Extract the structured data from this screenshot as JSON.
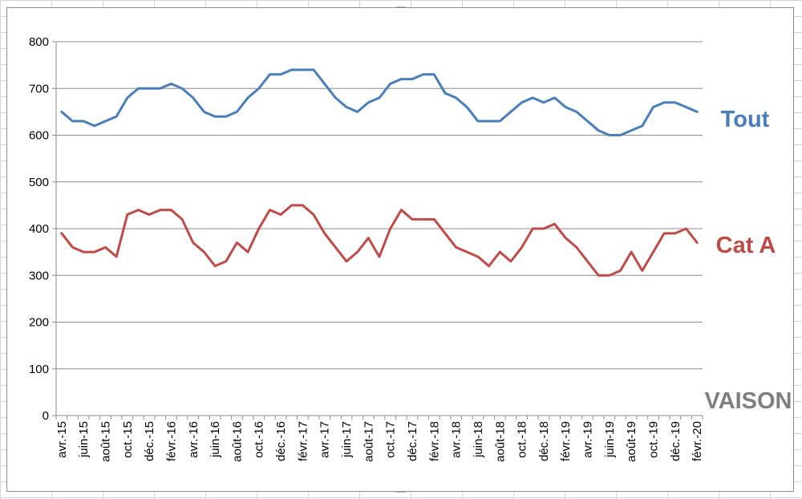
{
  "chart_data": {
    "type": "line",
    "x": [
      "avr.-15",
      "mai-15",
      "juin-15",
      "juil.-15",
      "août-15",
      "sept.-15",
      "oct.-15",
      "nov.-15",
      "déc.-15",
      "janv.-16",
      "févr.-16",
      "mars-16",
      "avr.-16",
      "mai-16",
      "juin-16",
      "juil.-16",
      "août-16",
      "sept.-16",
      "oct.-16",
      "nov.-16",
      "déc.-16",
      "janv.-17",
      "févr.-17",
      "mars-17",
      "avr.-17",
      "mai-17",
      "juin-17",
      "juil.-17",
      "août-17",
      "sept.-17",
      "oct.-17",
      "nov.-17",
      "déc.-17",
      "janv.-18",
      "févr.-18",
      "mars-18",
      "avr.-18",
      "mai-18",
      "juin-18",
      "juil.-18",
      "août-18",
      "sept.-18",
      "oct.-18",
      "nov.-18",
      "déc.-18",
      "janv.-19",
      "févr.-19",
      "mars-19",
      "avr.-19",
      "mai-19",
      "juin-19",
      "juil.-19",
      "août-19",
      "sept.-19",
      "oct.-19",
      "nov.-19",
      "déc.-19",
      "janv.-20",
      "févr.-20"
    ],
    "x_tick_labels": [
      "avr.-15",
      "juin-15",
      "août-15",
      "oct.-15",
      "déc.-15",
      "févr.-16",
      "avr.-16",
      "juin-16",
      "août-16",
      "oct.-16",
      "déc.-16",
      "févr.-17",
      "avr.-17",
      "juin-17",
      "août-17",
      "oct.-17",
      "déc.-17",
      "févr.-18",
      "avr.-18",
      "juin-18",
      "août-18",
      "oct.-18",
      "déc.-18",
      "févr.-19",
      "avr.-19",
      "juin-19",
      "août-19",
      "oct.-19",
      "déc.-19",
      "févr.-20"
    ],
    "y_ticks": [
      "0",
      "100",
      "200",
      "300",
      "400",
      "500",
      "600",
      "700",
      "800"
    ],
    "ylim": [
      0,
      800
    ],
    "grid": "horizontal",
    "series": [
      {
        "name": "Tout",
        "color": "#4a7ebb",
        "values": [
          650,
          630,
          630,
          620,
          630,
          640,
          680,
          700,
          700,
          700,
          710,
          700,
          680,
          650,
          640,
          640,
          650,
          680,
          700,
          730,
          730,
          740,
          740,
          740,
          710,
          680,
          660,
          650,
          670,
          680,
          710,
          720,
          720,
          730,
          730,
          690,
          680,
          660,
          630,
          630,
          630,
          650,
          670,
          680,
          670,
          680,
          660,
          650,
          630,
          610,
          600,
          600,
          610,
          620,
          660,
          670,
          670,
          660,
          650
        ]
      },
      {
        "name": "Cat A",
        "color": "#be4b48",
        "values": [
          390,
          360,
          350,
          350,
          360,
          340,
          430,
          440,
          430,
          440,
          440,
          420,
          370,
          350,
          320,
          330,
          370,
          350,
          400,
          440,
          430,
          450,
          450,
          430,
          390,
          360,
          330,
          350,
          380,
          340,
          400,
          440,
          420,
          420,
          420,
          390,
          360,
          350,
          340,
          320,
          350,
          330,
          360,
          400,
          400,
          410,
          380,
          360,
          330,
          300,
          300,
          310,
          350,
          310,
          350,
          390,
          390,
          400,
          370
        ]
      }
    ],
    "annotations": {
      "right_label_top": "Tout",
      "right_label_mid": "Cat A",
      "right_label_bottom": "VAISON"
    },
    "colors": {
      "label_bottom": "#7f7f7f"
    }
  }
}
